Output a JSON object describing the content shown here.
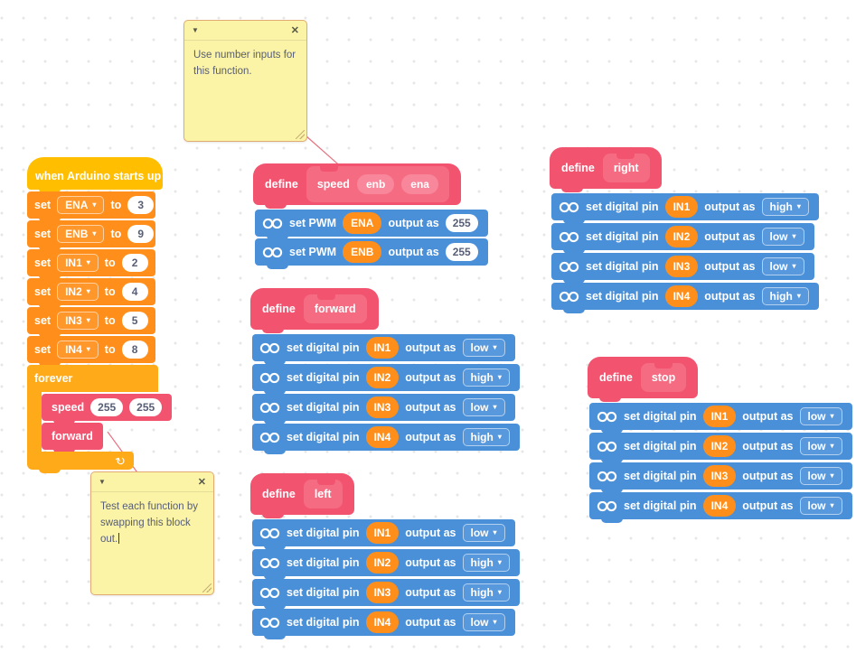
{
  "colors": {
    "events": "#ffbf00",
    "variables": "#ff8f1a",
    "control": "#ffab19",
    "pins": "#4a90d9",
    "myblocks": "#f25470",
    "myblocks_light": "#f56c82",
    "myblocks_param": "#f8879b",
    "comment_bg": "#fbf3a6",
    "comment_border": "#e2ab74",
    "connector": "#e8707f",
    "text_dark": "#575e75"
  },
  "labels": {
    "set": "set",
    "to": "to",
    "forever": "forever",
    "define": "define",
    "set_pwm": "set PWM",
    "set_digital_pin": "set digital pin",
    "output_as": "output as"
  },
  "icons": {
    "dropdown_arrow": "▾",
    "loop_arrow": "↻",
    "collapse_arrow": "▼",
    "close": "✕",
    "infinity": "infinity-icon"
  },
  "main_script": {
    "hat": "when Arduino starts up",
    "sets": [
      {
        "variable": "ENA",
        "value": "3"
      },
      {
        "variable": "ENB",
        "value": "9"
      },
      {
        "variable": "IN1",
        "value": "2"
      },
      {
        "variable": "IN2",
        "value": "4"
      },
      {
        "variable": "IN3",
        "value": "5"
      },
      {
        "variable": "IN4",
        "value": "8"
      }
    ],
    "forever": {
      "label": "forever",
      "calls": [
        {
          "name": "speed",
          "args": [
            "255",
            "255"
          ]
        },
        {
          "name": "forward",
          "args": []
        }
      ]
    }
  },
  "functions": [
    {
      "name": "speed",
      "params": [
        "enb",
        "ena"
      ],
      "type": "pwm",
      "rows": [
        {
          "pin": "ENA",
          "value": "255"
        },
        {
          "pin": "ENB",
          "value": "255"
        }
      ]
    },
    {
      "name": "forward",
      "params": [],
      "type": "digital",
      "rows": [
        {
          "pin": "IN1",
          "state": "low"
        },
        {
          "pin": "IN2",
          "state": "high"
        },
        {
          "pin": "IN3",
          "state": "low"
        },
        {
          "pin": "IN4",
          "state": "high"
        }
      ]
    },
    {
      "name": "left",
      "params": [],
      "type": "digital",
      "rows": [
        {
          "pin": "IN1",
          "state": "low"
        },
        {
          "pin": "IN2",
          "state": "high"
        },
        {
          "pin": "IN3",
          "state": "high"
        },
        {
          "pin": "IN4",
          "state": "low"
        }
      ]
    },
    {
      "name": "right",
      "params": [],
      "type": "digital",
      "rows": [
        {
          "pin": "IN1",
          "state": "high"
        },
        {
          "pin": "IN2",
          "state": "low"
        },
        {
          "pin": "IN3",
          "state": "low"
        },
        {
          "pin": "IN4",
          "state": "high"
        }
      ]
    },
    {
      "name": "stop",
      "params": [],
      "type": "digital",
      "rows": [
        {
          "pin": "IN1",
          "state": "low"
        },
        {
          "pin": "IN2",
          "state": "low"
        },
        {
          "pin": "IN3",
          "state": "low"
        },
        {
          "pin": "IN4",
          "state": "low"
        }
      ]
    }
  ],
  "comments": [
    {
      "text": "Use number inputs for this function."
    },
    {
      "text": "Test each function by swapping this block out."
    }
  ]
}
